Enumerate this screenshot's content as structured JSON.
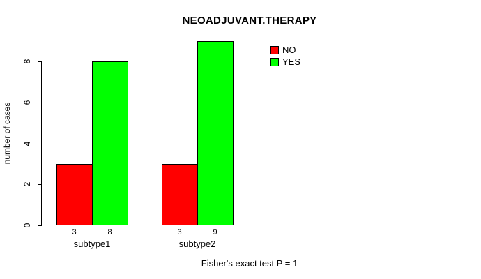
{
  "chart_data": {
    "type": "bar",
    "title": "NEOADJUVANT.THERAPY",
    "ylabel": "number of cases",
    "categories": [
      "subtype1",
      "subtype2"
    ],
    "series": [
      {
        "name": "NO",
        "color": "#ff0000",
        "values": [
          3,
          3
        ]
      },
      {
        "name": "YES",
        "color": "#00ff00",
        "values": [
          8,
          9
        ]
      }
    ],
    "bar_value_labels": [
      [
        3,
        8
      ],
      [
        3,
        9
      ]
    ],
    "yticks": [
      0,
      2,
      4,
      6,
      8
    ],
    "ylim": [
      0,
      9
    ],
    "grid": false,
    "legend_position": "topright",
    "annotation": "Fisher's exact test P = 1"
  },
  "colors": {
    "background": "#ffffff",
    "axis": "#000000",
    "text": "#000000"
  }
}
